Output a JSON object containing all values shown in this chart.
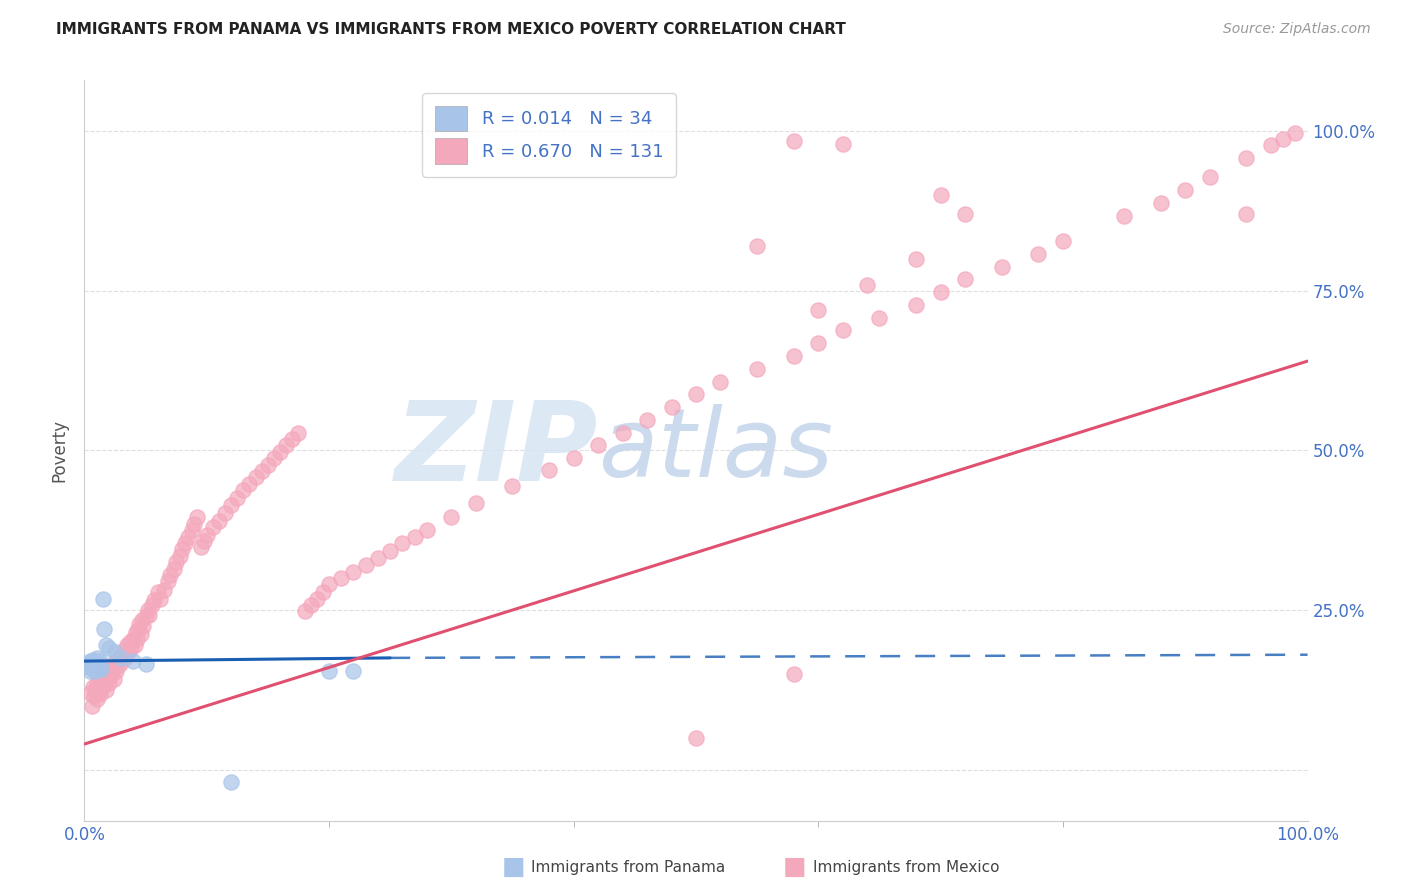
{
  "title": "IMMIGRANTS FROM PANAMA VS IMMIGRANTS FROM MEXICO POVERTY CORRELATION CHART",
  "source": "Source: ZipAtlas.com",
  "ylabel": "Poverty",
  "legend_r1": "R = 0.014",
  "legend_n1": "N = 34",
  "legend_r2": "R = 0.670",
  "legend_n2": "N = 131",
  "panama_color": "#a8c4e8",
  "mexico_color": "#f4a8bc",
  "panama_line_color": "#1a5fb4",
  "mexico_line_color": "#e05070",
  "watermark_zip": "ZIP",
  "watermark_atlas": "atlas",
  "watermark_color_zip": "#d0ddf0",
  "watermark_color_atlas": "#c0cce8",
  "background_color": "#ffffff",
  "grid_color": "#d8d8d8",
  "tick_color": "#4472c4",
  "right_tick_color": "#4472c4",
  "ytick_values": [
    0.0,
    0.25,
    0.5,
    0.75,
    1.0
  ],
  "ytick_labels_right": [
    "",
    "25.0%",
    "50.0%",
    "75.0%",
    "100.0%"
  ],
  "xtick_values": [
    0.0,
    1.0
  ],
  "xtick_labels": [
    "0.0%",
    "100.0%"
  ],
  "xlim": [
    0.0,
    1.0
  ],
  "ylim": [
    -0.08,
    1.08
  ],
  "panama_line_start_x": 0.0,
  "panama_line_start_y": 0.17,
  "panama_line_end_x": 0.25,
  "panama_line_end_y": 0.175,
  "mexico_line_start_x": 0.0,
  "mexico_line_start_y": 0.04,
  "mexico_line_end_x": 1.0,
  "mexico_line_end_y": 0.64,
  "panama_x": [
    0.003,
    0.004,
    0.005,
    0.005,
    0.006,
    0.006,
    0.007,
    0.007,
    0.007,
    0.008,
    0.008,
    0.009,
    0.009,
    0.009,
    0.01,
    0.01,
    0.01,
    0.011,
    0.011,
    0.012,
    0.013,
    0.013,
    0.014,
    0.015,
    0.016,
    0.018,
    0.02,
    0.025,
    0.03,
    0.04,
    0.05,
    0.12,
    0.2,
    0.22
  ],
  "panama_y": [
    0.16,
    0.165,
    0.155,
    0.17,
    0.162,
    0.168,
    0.158,
    0.163,
    0.172,
    0.16,
    0.165,
    0.155,
    0.162,
    0.17,
    0.158,
    0.165,
    0.175,
    0.16,
    0.165,
    0.158,
    0.162,
    0.17,
    0.158,
    0.268,
    0.22,
    0.195,
    0.19,
    0.185,
    0.175,
    0.17,
    0.165,
    -0.02,
    0.155,
    0.155
  ],
  "mexico_x": [
    0.005,
    0.006,
    0.007,
    0.008,
    0.009,
    0.01,
    0.01,
    0.011,
    0.012,
    0.012,
    0.013,
    0.013,
    0.014,
    0.015,
    0.015,
    0.016,
    0.017,
    0.018,
    0.018,
    0.019,
    0.02,
    0.021,
    0.022,
    0.023,
    0.024,
    0.025,
    0.026,
    0.027,
    0.028,
    0.029,
    0.03,
    0.031,
    0.032,
    0.033,
    0.035,
    0.036,
    0.037,
    0.038,
    0.04,
    0.041,
    0.042,
    0.043,
    0.044,
    0.045,
    0.046,
    0.047,
    0.048,
    0.05,
    0.052,
    0.053,
    0.055,
    0.057,
    0.06,
    0.062,
    0.065,
    0.068,
    0.07,
    0.073,
    0.075,
    0.078,
    0.08,
    0.082,
    0.085,
    0.088,
    0.09,
    0.092,
    0.095,
    0.098,
    0.1,
    0.105,
    0.11,
    0.115,
    0.12,
    0.125,
    0.13,
    0.135,
    0.14,
    0.145,
    0.15,
    0.155,
    0.16,
    0.165,
    0.17,
    0.175,
    0.18,
    0.185,
    0.19,
    0.195,
    0.2,
    0.21,
    0.22,
    0.23,
    0.24,
    0.25,
    0.26,
    0.27,
    0.28,
    0.3,
    0.32,
    0.35,
    0.38,
    0.4,
    0.42,
    0.44,
    0.46,
    0.48,
    0.5,
    0.52,
    0.55,
    0.58,
    0.6,
    0.62,
    0.65,
    0.68,
    0.7,
    0.72,
    0.75,
    0.78,
    0.8,
    0.85,
    0.88,
    0.9,
    0.92,
    0.95,
    0.97,
    0.98,
    0.99,
    0.58,
    0.6,
    0.64,
    0.68
  ],
  "mexico_y": [
    0.12,
    0.1,
    0.13,
    0.115,
    0.125,
    0.11,
    0.135,
    0.12,
    0.13,
    0.14,
    0.118,
    0.145,
    0.128,
    0.138,
    0.15,
    0.132,
    0.142,
    0.125,
    0.155,
    0.145,
    0.135,
    0.16,
    0.148,
    0.158,
    0.142,
    0.168,
    0.155,
    0.162,
    0.175,
    0.165,
    0.172,
    0.18,
    0.188,
    0.175,
    0.195,
    0.185,
    0.2,
    0.19,
    0.205,
    0.195,
    0.215,
    0.205,
    0.218,
    0.228,
    0.212,
    0.235,
    0.225,
    0.24,
    0.25,
    0.242,
    0.258,
    0.265,
    0.278,
    0.268,
    0.282,
    0.295,
    0.305,
    0.315,
    0.325,
    0.335,
    0.345,
    0.355,
    0.365,
    0.375,
    0.385,
    0.395,
    0.348,
    0.358,
    0.368,
    0.38,
    0.39,
    0.402,
    0.415,
    0.425,
    0.438,
    0.448,
    0.458,
    0.468,
    0.478,
    0.488,
    0.498,
    0.508,
    0.518,
    0.528,
    0.248,
    0.258,
    0.268,
    0.278,
    0.29,
    0.3,
    0.31,
    0.32,
    0.332,
    0.342,
    0.355,
    0.365,
    0.375,
    0.395,
    0.418,
    0.445,
    0.47,
    0.488,
    0.508,
    0.528,
    0.548,
    0.568,
    0.588,
    0.608,
    0.628,
    0.648,
    0.668,
    0.688,
    0.708,
    0.728,
    0.748,
    0.768,
    0.788,
    0.808,
    0.828,
    0.868,
    0.888,
    0.908,
    0.928,
    0.958,
    0.978,
    0.988,
    0.998,
    0.985,
    0.72,
    0.76,
    0.8
  ],
  "mexico_outlier_x": [
    0.55,
    0.62,
    0.7,
    0.72,
    0.95,
    0.58,
    0.5
  ],
  "mexico_outlier_y": [
    0.82,
    0.98,
    0.9,
    0.87,
    0.87,
    0.15,
    0.05
  ]
}
